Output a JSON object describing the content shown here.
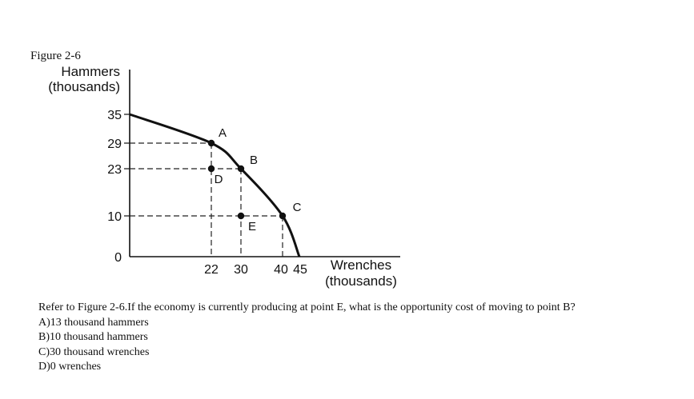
{
  "figure_label": "Figure 2-6",
  "question": {
    "text": "Refer to Figure 2-6.If the economy is currently producing at point E, what is the opportunity cost of moving to point B?",
    "options": [
      "A)13 thousand hammers",
      "B)10 thousand hammers",
      "C)30 thousand wrenches",
      "D)0 wrenches"
    ]
  },
  "chart_data": {
    "type": "line",
    "ylabel": [
      "Hammers",
      "(thousands)"
    ],
    "xlabel": [
      "Wrenches",
      "(thousands)"
    ],
    "x_ticks": [
      0,
      22,
      30,
      40,
      45
    ],
    "y_ticks": [
      0,
      10,
      23,
      29,
      35
    ],
    "xlim": [
      0,
      45
    ],
    "ylim": [
      0,
      35
    ],
    "grid": false,
    "frontier": {
      "x": [
        0,
        22,
        30,
        40,
        45
      ],
      "y": [
        35,
        29,
        23,
        10,
        0
      ]
    },
    "points": [
      {
        "label": "A",
        "x": 22,
        "y": 29
      },
      {
        "label": "B",
        "x": 30,
        "y": 23
      },
      {
        "label": "C",
        "x": 40,
        "y": 10
      },
      {
        "label": "D",
        "x": 22,
        "y": 23
      },
      {
        "label": "E",
        "x": 30,
        "y": 10
      }
    ],
    "guides": [
      {
        "x": 22,
        "y": 29
      },
      {
        "x": 30,
        "y": 23
      },
      {
        "x": 40,
        "y": 10
      }
    ]
  }
}
